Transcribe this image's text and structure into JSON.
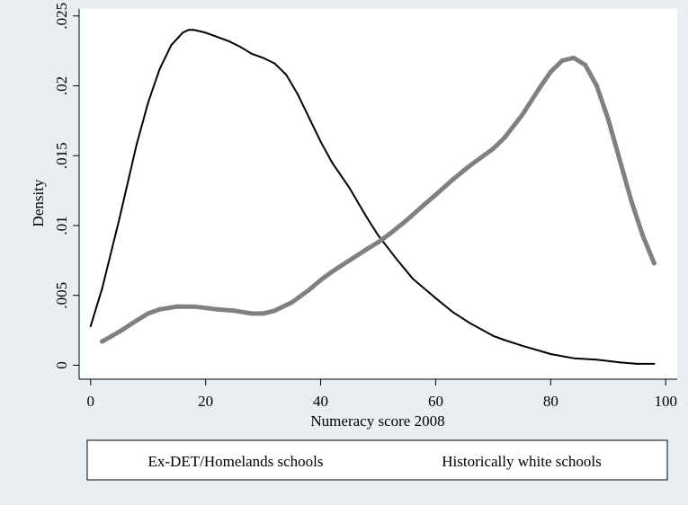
{
  "chart_data": {
    "type": "line",
    "title": "",
    "xlabel": "Numeracy score 2008",
    "ylabel": "Density",
    "xlim": [
      -2,
      102
    ],
    "ylim": [
      -0.001,
      0.0255
    ],
    "xticks": [
      0,
      20,
      40,
      60,
      80,
      100
    ],
    "xtick_labels": [
      "0",
      "20",
      "40",
      "60",
      "80",
      "100"
    ],
    "yticks": [
      0,
      0.005,
      0.01,
      0.015,
      0.02,
      0.025
    ],
    "ytick_labels": [
      "0",
      ".005",
      ".01",
      ".015",
      ".02",
      ".025"
    ],
    "grid": false,
    "legend_position": "bottom",
    "series": [
      {
        "name": "Ex-DET/Homelands schools",
        "color": "#000000",
        "style": "thin",
        "x": [
          0,
          2,
          5,
          8,
          10,
          12,
          14,
          16,
          17,
          18,
          20,
          22,
          24,
          26,
          28,
          30,
          32,
          34,
          36,
          38,
          40,
          42,
          45,
          48,
          50,
          53,
          56,
          60,
          63,
          66,
          70,
          72,
          75,
          80,
          84,
          88,
          92,
          95,
          98
        ],
        "y": [
          0.0028,
          0.0055,
          0.0105,
          0.0158,
          0.0188,
          0.0212,
          0.0229,
          0.0238,
          0.024,
          0.024,
          0.0238,
          0.0235,
          0.0232,
          0.0228,
          0.0223,
          0.022,
          0.0216,
          0.0208,
          0.0194,
          0.0177,
          0.016,
          0.0145,
          0.0127,
          0.0106,
          0.0093,
          0.0077,
          0.0062,
          0.0048,
          0.0038,
          0.003,
          0.0021,
          0.0018,
          0.0014,
          0.0008,
          0.0005,
          0.0004,
          0.0002,
          0.0001,
          0.0001
        ]
      },
      {
        "name": "Historically white schools",
        "color": "#808080",
        "style": "thick",
        "x": [
          2,
          5,
          8,
          10,
          12,
          15,
          18,
          20,
          22,
          25,
          28,
          30,
          32,
          35,
          38,
          40,
          42,
          45,
          48,
          50,
          52,
          55,
          58,
          60,
          63,
          66,
          70,
          72,
          75,
          78,
          80,
          82,
          84,
          86,
          88,
          90,
          92,
          94,
          96,
          98
        ],
        "y": [
          0.0017,
          0.0024,
          0.0032,
          0.0037,
          0.004,
          0.0042,
          0.0042,
          0.0041,
          0.004,
          0.0039,
          0.0037,
          0.0037,
          0.0039,
          0.0045,
          0.0054,
          0.0061,
          0.0067,
          0.0075,
          0.0083,
          0.0088,
          0.0094,
          0.0104,
          0.0115,
          0.0122,
          0.0133,
          0.0143,
          0.0155,
          0.0163,
          0.0179,
          0.0198,
          0.021,
          0.0218,
          0.022,
          0.0215,
          0.02,
          0.0176,
          0.0147,
          0.0118,
          0.0093,
          0.0073
        ]
      }
    ]
  }
}
